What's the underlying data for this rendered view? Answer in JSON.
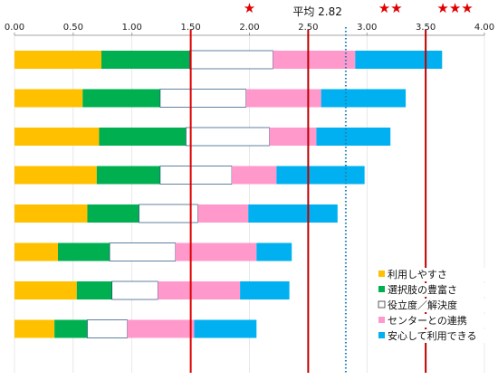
{
  "chart_data": {
    "type": "bar",
    "orientation": "horizontal",
    "stacked": true,
    "xlim": [
      0,
      4
    ],
    "x_ticks": [
      "0.00",
      "0.50",
      "1.00",
      "1.50",
      "2.00",
      "2.50",
      "3.00",
      "3.50",
      "4.00"
    ],
    "categories": [
      "",
      "",
      "",
      "",
      "",
      "",
      "",
      ""
    ],
    "series": [
      {
        "name": "利用しやすさ",
        "color": "#FFC000",
        "values": [
          0.74,
          0.58,
          0.72,
          0.7,
          0.62,
          0.37,
          0.53,
          0.34
        ]
      },
      {
        "name": "選択肢の豊富さ",
        "color": "#00B050",
        "values": [
          0.75,
          0.66,
          0.74,
          0.54,
          0.44,
          0.44,
          0.3,
          0.28
        ]
      },
      {
        "name": "役立度／解決度",
        "color": "#FFFFFF",
        "values": [
          0.71,
          0.73,
          0.71,
          0.61,
          0.5,
          0.56,
          0.39,
          0.34
        ]
      },
      {
        "name": "センターとの連携",
        "color": "#FF99CC",
        "values": [
          0.7,
          0.64,
          0.4,
          0.38,
          0.43,
          0.69,
          0.7,
          0.57
        ]
      },
      {
        "name": "安心して利用できる",
        "color": "#00B0F0",
        "values": [
          0.74,
          0.72,
          0.63,
          0.75,
          0.76,
          0.3,
          0.42,
          0.53
        ]
      }
    ],
    "reference_lines": [
      {
        "x": 1.5,
        "style": "solid",
        "color": "#E00000"
      },
      {
        "x": 2.5,
        "style": "solid",
        "color": "#C00000"
      },
      {
        "x": 2.82,
        "style": "dotted",
        "color": "#1F7FB5",
        "label": "平均 2.82"
      },
      {
        "x": 3.5,
        "style": "solid",
        "color": "#C00000"
      }
    ],
    "star_markers": [
      {
        "x": 2.0,
        "stars": "★"
      },
      {
        "x": 3.2,
        "stars": "★★"
      },
      {
        "x": 3.75,
        "stars": "★★★"
      }
    ],
    "grid": true,
    "legend_position": "bottom-right"
  }
}
